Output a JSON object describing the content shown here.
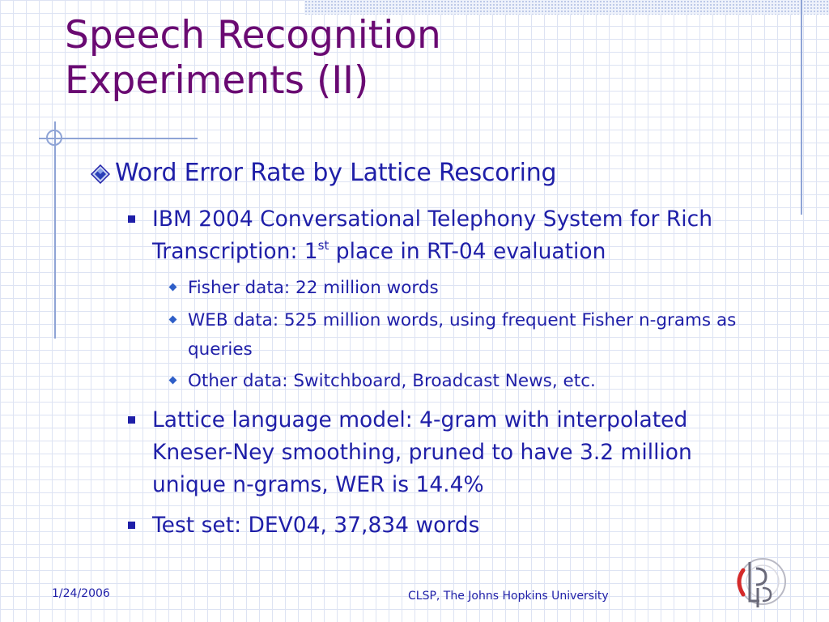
{
  "slide": {
    "title_line1": "Speech Recognition",
    "title_line2": "Experiments (II)",
    "level1": {
      "text": "Word Error Rate by Lattice Rescoring",
      "icon": "diamond-bullet-icon"
    },
    "bullet1": {
      "text_before_sup": "IBM 2004 Conversational Telephony System for Rich Transcription: 1",
      "sup": "st",
      "text_after_sup": " place in RT-04 evaluation"
    },
    "sub_bullets": [
      "Fisher data: 22 million words",
      "WEB data: 525 million words, using frequent Fisher n-grams as queries",
      "Other data: Switchboard, Broadcast News, etc."
    ],
    "bullet2": "Lattice language model: 4-gram with interpolated Kneser-Ney smoothing, pruned to have 3.2 million unique n-grams, WER is 14.4%",
    "bullet3": "Test set: DEV04, 37,834 words"
  },
  "footer": {
    "date": "1/24/2006",
    "center": "CLSP, The Johns Hopkins University",
    "logo_icon": "clsp-logo-icon"
  },
  "colors": {
    "title": "#6a0a72",
    "body_text": "#1f1fa8",
    "accent_lines": "#8fa4d6",
    "grid": "#dde3f3"
  }
}
